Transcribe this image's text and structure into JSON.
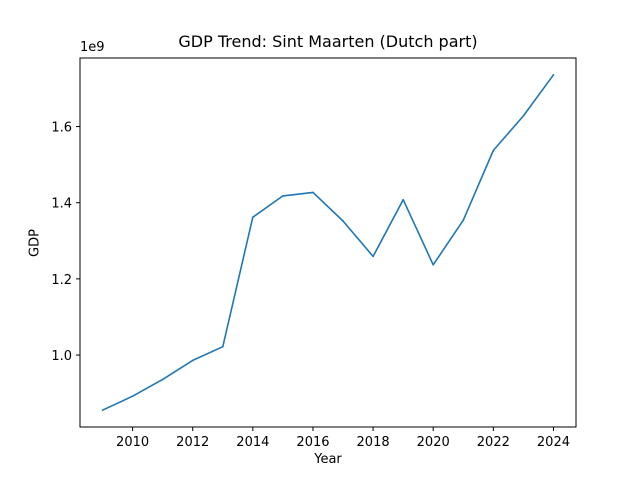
{
  "chart_data": {
    "type": "line",
    "title": "GDP Trend: Sint Maarten (Dutch part)",
    "xlabel": "Year",
    "ylabel": "GDP",
    "y_offset_label": "1e9",
    "x": [
      2009,
      2010,
      2011,
      2012,
      2013,
      2014,
      2015,
      2016,
      2017,
      2018,
      2019,
      2020,
      2021,
      2022,
      2023,
      2024
    ],
    "series": [
      {
        "values": [
          0.855,
          0.892,
          0.936,
          0.986,
          1.022,
          1.362,
          1.418,
          1.427,
          1.352,
          1.259,
          1.408,
          1.237,
          1.354,
          1.537,
          1.628,
          1.736
        ],
        "color": "#1f77b4"
      }
    ],
    "xticks": [
      "2010",
      "2012",
      "2014",
      "2016",
      "2018",
      "2020",
      "2022",
      "2024"
    ],
    "yticks": [
      "1.0",
      "1.2",
      "1.4",
      "1.6"
    ],
    "xlim": [
      2008.25,
      2024.75
    ],
    "ylim": [
      0.811,
      1.78
    ],
    "grid": false
  }
}
